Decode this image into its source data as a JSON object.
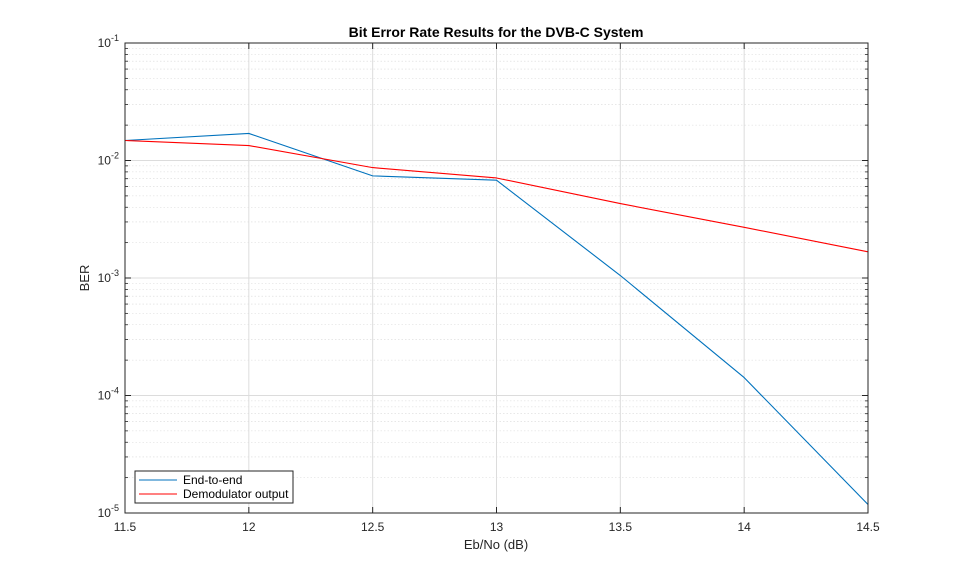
{
  "chart_data": {
    "type": "line",
    "title": "Bit Error Rate Results for the DVB-C System",
    "xlabel": "Eb/No (dB)",
    "ylabel": "BER",
    "xlim": [
      11.5,
      14.5
    ],
    "ylim": [
      1e-05,
      0.1
    ],
    "yscale": "log",
    "grid": true,
    "minor_grid": true,
    "legend_position": "bottom-left",
    "x": [
      11.5,
      12,
      12.5,
      13,
      13.5,
      14,
      14.5
    ],
    "xticks": [
      "11.5",
      "12",
      "12.5",
      "13",
      "13.5",
      "14",
      "14.5"
    ],
    "yticks": [
      {
        "base": "10",
        "exp": "-5",
        "value": 1e-05
      },
      {
        "base": "10",
        "exp": "-4",
        "value": 0.0001
      },
      {
        "base": "10",
        "exp": "-3",
        "value": 0.001
      },
      {
        "base": "10",
        "exp": "-2",
        "value": 0.01
      },
      {
        "base": "10",
        "exp": "-1",
        "value": 0.1
      }
    ],
    "series": [
      {
        "name": "End-to-end",
        "color": "#0072bd",
        "values": [
          0.0148,
          0.017,
          0.0074,
          0.0068,
          0.00105,
          0.000142,
          1.18e-05
        ]
      },
      {
        "name": "Demodulator output",
        "color": "#ff0000",
        "values": [
          0.0148,
          0.0134,
          0.0087,
          0.0071,
          0.0043,
          0.0027,
          0.00167
        ]
      }
    ]
  }
}
